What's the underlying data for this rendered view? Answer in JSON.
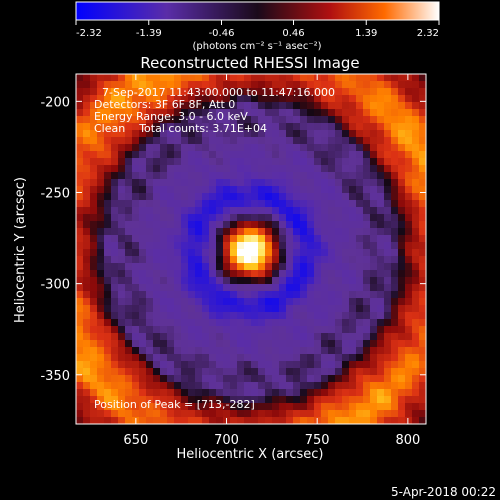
{
  "chart_data": {
    "type": "heatmap",
    "title": "Reconstructed RHESSI Image",
    "xlabel": "Heliocentric X (arcsec)",
    "ylabel": "Heliocentric Y (arcsec)",
    "xlim": [
      617,
      810
    ],
    "ylim": [
      -377,
      -185
    ],
    "x_ticks": [
      "650",
      "700",
      "750",
      "800"
    ],
    "y_ticks": [
      "-200",
      "-250",
      "-300",
      "-350"
    ],
    "x_tick_values": [
      650,
      700,
      750,
      800
    ],
    "y_tick_values": [
      -200,
      -250,
      -300,
      -350
    ],
    "colorbar": {
      "min": -2.32,
      "max": 2.32,
      "ticks": [
        "-2.32",
        "-1.39",
        "-0.46",
        "0.46",
        "1.39",
        "2.32"
      ],
      "tick_values": [
        -2.32,
        -1.39,
        -0.46,
        0.46,
        1.39,
        2.32
      ],
      "unit": "(photons cm⁻² s⁻¹ asec⁻²)",
      "colors": [
        "#0000ff",
        "#5a2da8",
        "#1a0a1a",
        "#b01010",
        "#ff6a00",
        "#ffffff"
      ]
    },
    "peak": {
      "x": 713,
      "y": -282,
      "value": 2.32
    },
    "grid": false
  },
  "annotations": [
    "7-Sep-2017 11:43:00.000 to 11:47:16.000",
    "Detectors: 3F 6F 8F, Att 0",
    "Energy Range: 3.0 - 6.0 keV",
    "Clean    Total counts: 3.71E+04"
  ],
  "peak_label": "Position of Peak = [713,-282]",
  "footer_date": "5-Apr-2018 00:22"
}
